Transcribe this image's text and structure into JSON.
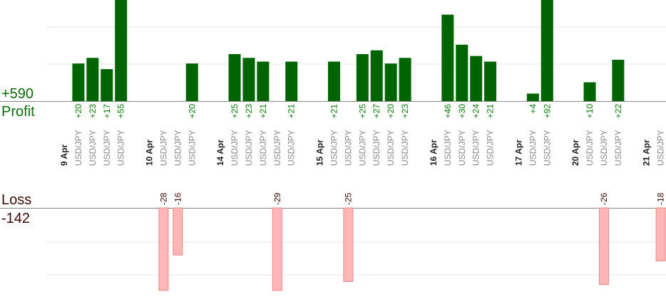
{
  "summary": {
    "profit_total": "+590",
    "profit_label": "Profit",
    "loss_label": "Loss",
    "loss_total": "-142"
  },
  "colors": {
    "profit_bar": "#006400",
    "loss_bar": "#ffb6b6",
    "loss_bar_border": "#e88a8a",
    "profit_text": "#0b6b0b",
    "loss_text": "#3a0a0a",
    "grid": "#e6e6e6",
    "axis": "#888888"
  },
  "chart_data": {
    "type": "bar",
    "title": "",
    "xlabel": "",
    "ylabel": "",
    "grid": true,
    "legend": "none",
    "columns": [
      {
        "kind": "date",
        "label": "9 Apr"
      },
      {
        "kind": "trade",
        "symbol": "USD/JPY",
        "value": 20,
        "label": "+20"
      },
      {
        "kind": "trade",
        "symbol": "USD/JPY",
        "value": 23,
        "label": "+23"
      },
      {
        "kind": "trade",
        "symbol": "USD/JPY",
        "value": 17,
        "label": "+17"
      },
      {
        "kind": "trade",
        "symbol": "USD/JPY",
        "value": 55,
        "label": "+55"
      },
      {
        "kind": "gap"
      },
      {
        "kind": "date",
        "label": "10 Apr"
      },
      {
        "kind": "trade",
        "symbol": "USD/JPY",
        "value": -28,
        "label": "-28"
      },
      {
        "kind": "trade",
        "symbol": "USD/JPY",
        "value": -16,
        "label": "-16"
      },
      {
        "kind": "trade",
        "symbol": "USD/JPY",
        "value": 20,
        "label": "+20"
      },
      {
        "kind": "gap"
      },
      {
        "kind": "date",
        "label": "14 Apr"
      },
      {
        "kind": "trade",
        "symbol": "USD/JPY",
        "value": 25,
        "label": "+25"
      },
      {
        "kind": "trade",
        "symbol": "USD/JPY",
        "value": 23,
        "label": "+23"
      },
      {
        "kind": "trade",
        "symbol": "USD/JPY",
        "value": 21,
        "label": "+21"
      },
      {
        "kind": "trade",
        "symbol": "USD/JPY",
        "value": -29,
        "label": "-29"
      },
      {
        "kind": "trade",
        "symbol": "USD/JPY",
        "value": 21,
        "label": "+21"
      },
      {
        "kind": "gap"
      },
      {
        "kind": "date",
        "label": "15 Apr"
      },
      {
        "kind": "trade",
        "symbol": "USD/JPY",
        "value": 21,
        "label": "+21"
      },
      {
        "kind": "trade",
        "symbol": "USD/JPY",
        "value": -25,
        "label": "-25"
      },
      {
        "kind": "trade",
        "symbol": "USD/JPY",
        "value": 25,
        "label": "+25"
      },
      {
        "kind": "trade",
        "symbol": "USD/JPY",
        "value": 27,
        "label": "+27"
      },
      {
        "kind": "trade",
        "symbol": "USD/JPY",
        "value": 20,
        "label": "+20"
      },
      {
        "kind": "trade",
        "symbol": "USD/JPY",
        "value": 23,
        "label": "+23"
      },
      {
        "kind": "gap"
      },
      {
        "kind": "date",
        "label": "16 Apr"
      },
      {
        "kind": "trade",
        "symbol": "USD/JPY",
        "value": 46,
        "label": "+46"
      },
      {
        "kind": "trade",
        "symbol": "USD/JPY",
        "value": 30,
        "label": "+30"
      },
      {
        "kind": "trade",
        "symbol": "USD/JPY",
        "value": 24,
        "label": "+24"
      },
      {
        "kind": "trade",
        "symbol": "USD/JPY",
        "value": 21,
        "label": "+21"
      },
      {
        "kind": "gap"
      },
      {
        "kind": "date",
        "label": "17 Apr"
      },
      {
        "kind": "trade",
        "symbol": "USD/JPY",
        "value": 4,
        "label": "+4"
      },
      {
        "kind": "trade",
        "symbol": "USD/JPY",
        "value": 92,
        "label": "+92"
      },
      {
        "kind": "gap"
      },
      {
        "kind": "date",
        "label": "20 Apr"
      },
      {
        "kind": "trade",
        "symbol": "USD/JPY",
        "value": 10,
        "label": "+10"
      },
      {
        "kind": "trade",
        "symbol": "USD/JPY",
        "value": -26,
        "label": "-26"
      },
      {
        "kind": "trade",
        "symbol": "USD/JPY",
        "value": 22,
        "label": "+22"
      },
      {
        "kind": "gap"
      },
      {
        "kind": "date",
        "label": "21 Apr"
      },
      {
        "kind": "trade",
        "symbol": "USD/JPY",
        "value": -18,
        "label": "-18"
      }
    ]
  }
}
